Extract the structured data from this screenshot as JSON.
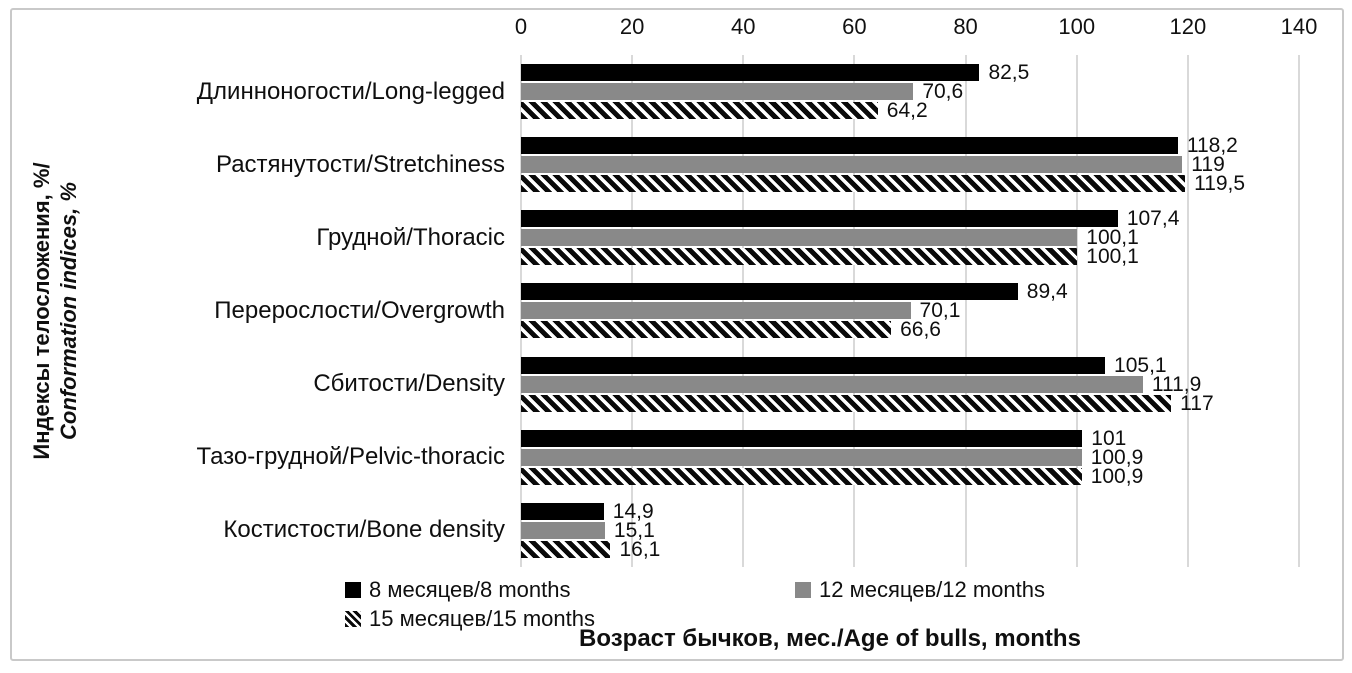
{
  "chart_data": {
    "type": "bar",
    "orientation": "horizontal",
    "title": "",
    "ylabel_line1": "Индексы телосложения, %/",
    "ylabel_line2": "Conformation indices, %",
    "xlabel": "Возраст бычков, мес./Age of bulls, months",
    "x_axis": {
      "position": "top",
      "min": 0,
      "max": 140,
      "tick_step": 20,
      "ticks": [
        "0",
        "20",
        "40",
        "60",
        "80",
        "100",
        "120",
        "140"
      ],
      "gridlines": "vertical-light-gray"
    },
    "legend_position": "bottom",
    "categories": [
      "Длинноногости/Long-legged",
      "Растянутости/Stretchiness",
      "Грудной/Thoracic",
      "Перерослости/Overgrowth",
      "Сбитости/Density",
      "Тазо-грудной/Pelvic-thoracic",
      "Костистости/Bone density"
    ],
    "series": [
      {
        "name": "8 месяцев/8 months",
        "color": "#000000",
        "pattern": "solid",
        "values": [
          82.5,
          118.2,
          107.4,
          89.4,
          105.1,
          101,
          14.9
        ],
        "value_labels": [
          "82,5",
          "118,2",
          "107,4",
          "89,4",
          "105,1",
          "101",
          "14,9"
        ]
      },
      {
        "name": "12 месяцев/12 months",
        "color": "#898989",
        "pattern": "solid",
        "values": [
          70.6,
          119,
          100.1,
          70.1,
          111.9,
          100.9,
          15.1
        ],
        "value_labels": [
          "70,6",
          "119",
          "100,1",
          "70,1",
          "111,9",
          "100,9",
          "15,1"
        ]
      },
      {
        "name": "15 месяцев/15 months",
        "color": "#000000",
        "pattern": "diagonal-hatch-on-white",
        "values": [
          64.2,
          119.5,
          100.1,
          66.6,
          117,
          100.9,
          16.1
        ],
        "value_labels": [
          "64,2",
          "119,5",
          "100,1",
          "66,6",
          "117",
          "100,9",
          "16,1"
        ]
      }
    ]
  },
  "colors": {
    "bar_black": "#000000",
    "bar_gray": "#898989",
    "hatch_stroke": "#0a0a0a",
    "gridline": "#d9d9d9",
    "frame_border": "#c9c9c9",
    "text": "#0f0f0f",
    "background": "#ffffff"
  }
}
